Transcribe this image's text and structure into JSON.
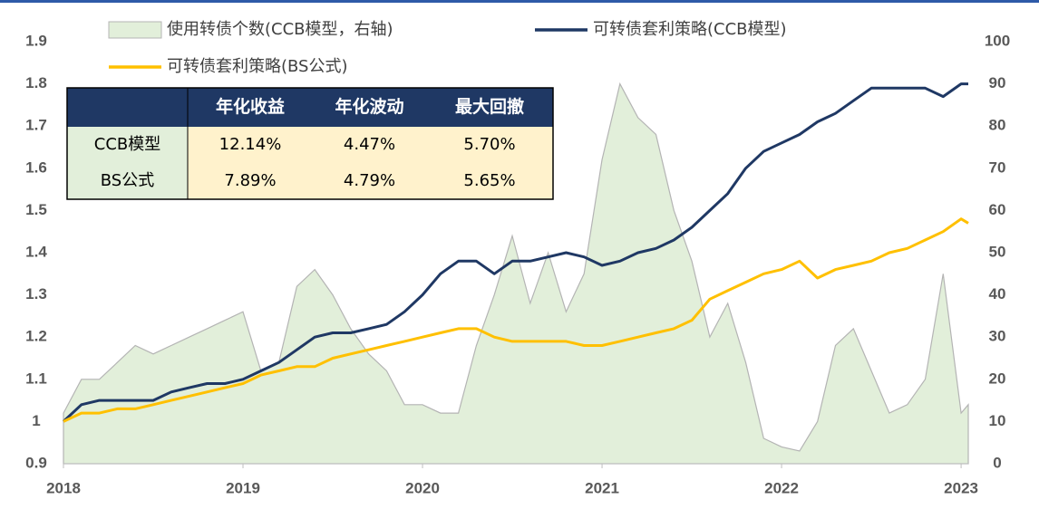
{
  "chart_data": {
    "type": "line",
    "x": [
      2018.0,
      2018.1,
      2018.2,
      2018.3,
      2018.4,
      2018.5,
      2018.6,
      2018.7,
      2018.8,
      2018.9,
      2019.0,
      2019.1,
      2019.2,
      2019.3,
      2019.4,
      2019.5,
      2019.6,
      2019.7,
      2019.8,
      2019.9,
      2020.0,
      2020.1,
      2020.2,
      2020.3,
      2020.4,
      2020.5,
      2020.6,
      2020.7,
      2020.8,
      2020.9,
      2021.0,
      2021.1,
      2021.2,
      2021.3,
      2021.4,
      2021.5,
      2021.6,
      2021.7,
      2021.8,
      2021.9,
      2022.0,
      2022.1,
      2022.2,
      2022.3,
      2022.4,
      2022.5,
      2022.6,
      2022.7,
      2022.8,
      2022.9,
      2023.0,
      2023.04
    ],
    "xlim": [
      2018,
      2023.04
    ],
    "xticks": [
      2018,
      2019,
      2020,
      2021,
      2022,
      2023
    ],
    "ylim": [
      0.9,
      1.9
    ],
    "yticks": [
      0.9,
      1,
      1.1,
      1.2,
      1.3,
      1.4,
      1.5,
      1.6,
      1.7,
      1.8,
      1.9
    ],
    "y2lim": [
      0,
      100
    ],
    "y2ticks": [
      0,
      10,
      20,
      30,
      40,
      50,
      60,
      70,
      80,
      90,
      100
    ],
    "grid": false,
    "series": [
      {
        "name": "使用转债个数(CCB模型，右轴)",
        "type": "area",
        "axis": "y2",
        "color": "#e2efda",
        "values": [
          12,
          20,
          20,
          24,
          28,
          26,
          28,
          30,
          32,
          34,
          36,
          22,
          24,
          42,
          46,
          40,
          32,
          26,
          22,
          14,
          14,
          12,
          12,
          28,
          40,
          54,
          38,
          50,
          36,
          45,
          72,
          90,
          82,
          78,
          60,
          48,
          30,
          38,
          24,
          6,
          4,
          3,
          10,
          28,
          32,
          22,
          12,
          14,
          20,
          45,
          12,
          14
        ]
      },
      {
        "name": "可转债套利策略(CCB模型)",
        "type": "line",
        "color": "#1f3864",
        "values": [
          1.0,
          1.04,
          1.05,
          1.05,
          1.05,
          1.05,
          1.07,
          1.08,
          1.09,
          1.09,
          1.1,
          1.12,
          1.14,
          1.17,
          1.2,
          1.21,
          1.21,
          1.22,
          1.23,
          1.26,
          1.3,
          1.35,
          1.38,
          1.38,
          1.35,
          1.38,
          1.38,
          1.39,
          1.4,
          1.39,
          1.37,
          1.38,
          1.4,
          1.41,
          1.43,
          1.46,
          1.5,
          1.54,
          1.6,
          1.64,
          1.66,
          1.68,
          1.71,
          1.73,
          1.76,
          1.79,
          1.79,
          1.79,
          1.79,
          1.77,
          1.8,
          1.8
        ]
      },
      {
        "name": "可转债套利策略(BS公式)",
        "type": "line",
        "color": "#ffc000",
        "values": [
          1.0,
          1.02,
          1.02,
          1.03,
          1.03,
          1.04,
          1.05,
          1.06,
          1.07,
          1.08,
          1.09,
          1.11,
          1.12,
          1.13,
          1.13,
          1.15,
          1.16,
          1.17,
          1.18,
          1.19,
          1.2,
          1.21,
          1.22,
          1.22,
          1.2,
          1.19,
          1.19,
          1.19,
          1.19,
          1.18,
          1.18,
          1.19,
          1.2,
          1.21,
          1.22,
          1.24,
          1.29,
          1.31,
          1.33,
          1.35,
          1.36,
          1.38,
          1.34,
          1.36,
          1.37,
          1.38,
          1.4,
          1.41,
          1.43,
          1.45,
          1.48,
          1.47
        ]
      }
    ],
    "table": {
      "columns": [
        "年化收益",
        "年化波动",
        "最大回撤"
      ],
      "rows": [
        [
          "CCB模型",
          "12.14%",
          "4.47%",
          "5.70%"
        ],
        [
          "BS公式",
          "7.89%",
          "4.79%",
          "5.65%"
        ]
      ]
    }
  }
}
